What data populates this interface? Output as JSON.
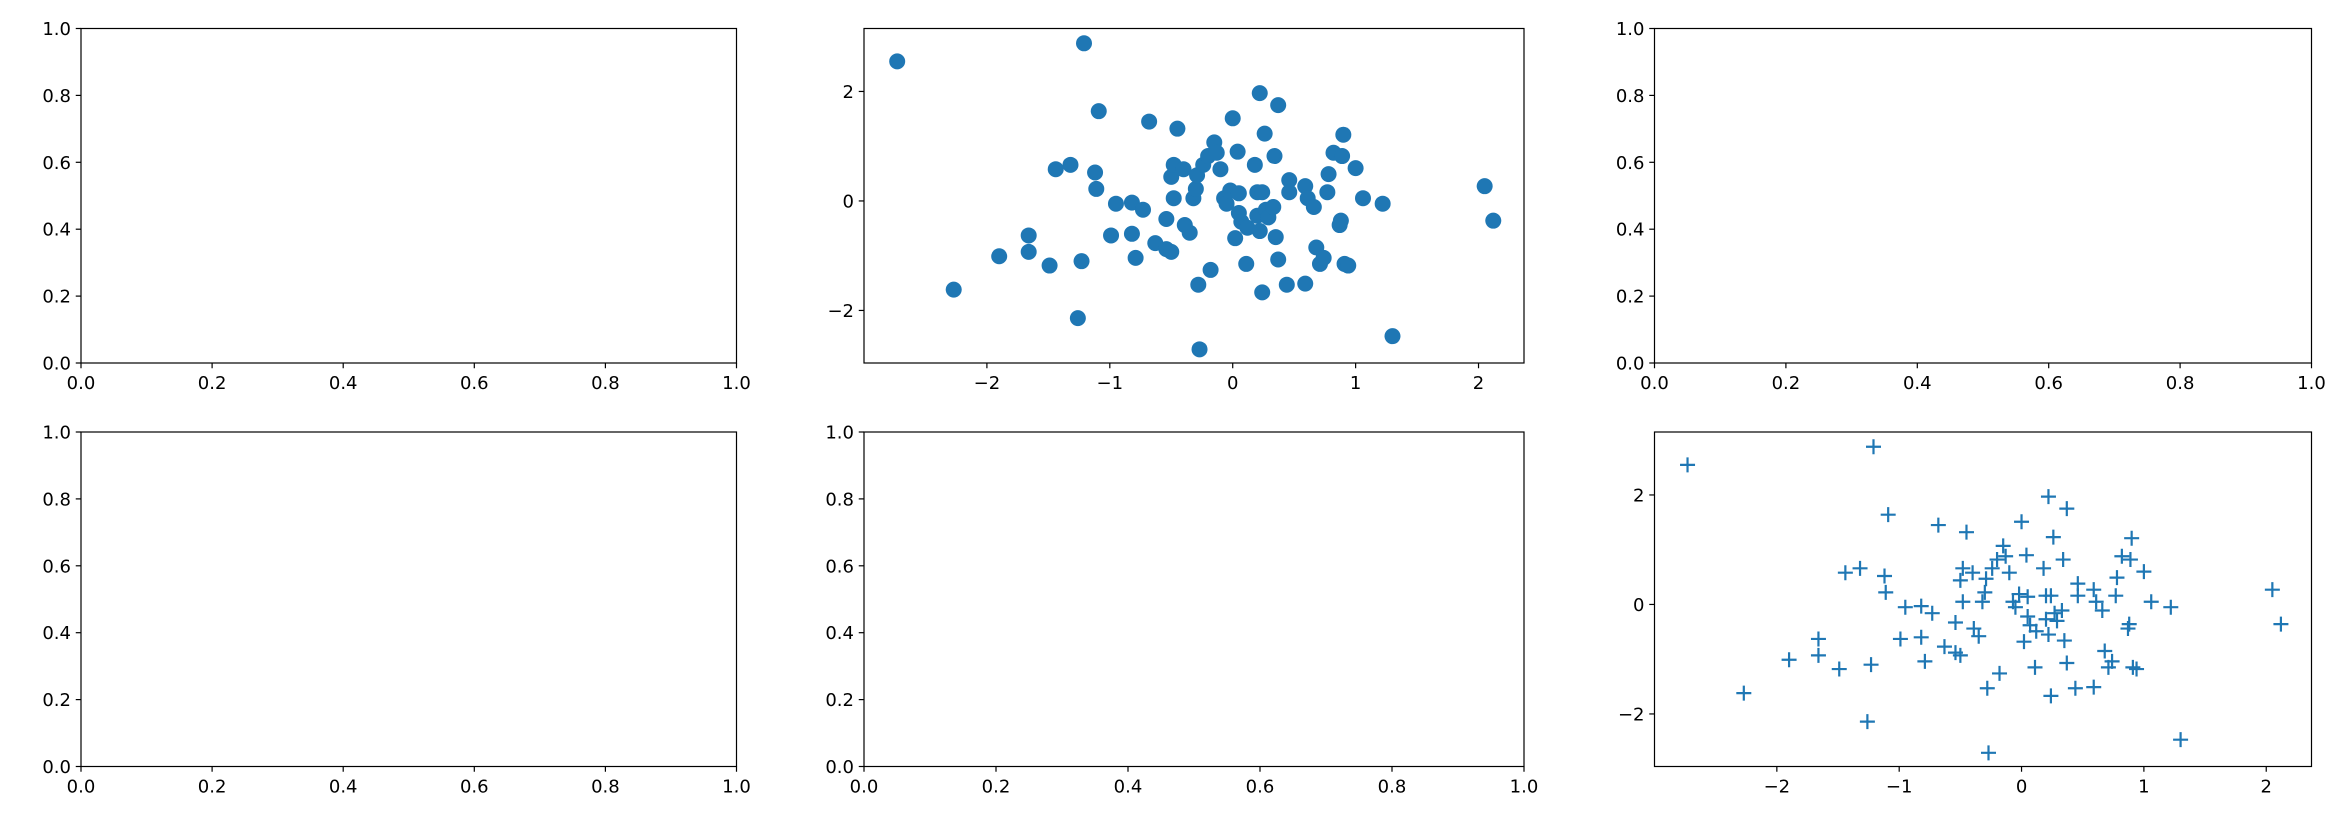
{
  "chart_data": [
    {
      "type": "axes",
      "xlim": [
        0,
        1
      ],
      "ylim": [
        0,
        1
      ],
      "xticks": [
        {
          "value": 0,
          "label": "0.0"
        },
        {
          "value": 0.2,
          "label": "0.2"
        },
        {
          "value": 0.4,
          "label": "0.4"
        },
        {
          "value": 0.6,
          "label": "0.6"
        },
        {
          "value": 0.8,
          "label": "0.8"
        },
        {
          "value": 1,
          "label": "1.0"
        }
      ],
      "yticks": [
        {
          "value": 0,
          "label": "0.0"
        },
        {
          "value": 0.2,
          "label": "0.2"
        },
        {
          "value": 0.4,
          "label": "0.4"
        },
        {
          "value": 0.6,
          "label": "0.6"
        },
        {
          "value": 0.8,
          "label": "0.8"
        },
        {
          "value": 1,
          "label": "1.0"
        }
      ]
    },
    {
      "type": "scatter",
      "marker": "o",
      "color": "#1f77b4",
      "xlim": [
        -3.0,
        2.37
      ],
      "ylim": [
        -2.96,
        3.15
      ],
      "xticks": [
        {
          "value": -2,
          "label": "−2"
        },
        {
          "value": -1,
          "label": "−1"
        },
        0,
        1,
        2
      ],
      "yticks": [
        {
          "value": -2,
          "label": "−2"
        },
        0,
        2
      ],
      "x": [
        -2.73,
        -1.21,
        -2.27,
        -1.9,
        -1.66,
        -1.66,
        -1.49,
        -1.44,
        -1.32,
        -1.23,
        -1.26,
        -1.12,
        -1.11,
        -1.09,
        -0.99,
        -0.95,
        -0.82,
        -0.82,
        -0.79,
        -0.73,
        -0.68,
        -0.63,
        -0.54,
        -0.54,
        -0.5,
        -0.5,
        -0.48,
        -0.48,
        -0.45,
        -0.4,
        -0.39,
        -0.35,
        -0.32,
        -0.3,
        -0.28,
        -0.27,
        -0.29,
        -0.24,
        -0.2,
        -0.18,
        -0.15,
        -0.13,
        -0.1,
        -0.07,
        -0.05,
        -0.02,
        0.0,
        0.02,
        0.04,
        0.05,
        0.05,
        0.07,
        0.11,
        0.12,
        0.18,
        0.2,
        0.2,
        0.22,
        0.22,
        0.24,
        0.24,
        0.26,
        0.27,
        0.29,
        0.33,
        0.34,
        0.35,
        0.37,
        0.37,
        0.44,
        0.46,
        0.46,
        0.59,
        0.59,
        0.61,
        0.66,
        0.68,
        0.71,
        0.74,
        0.77,
        0.78,
        0.82,
        0.87,
        0.88,
        0.89,
        0.9,
        0.91,
        0.94,
        1.0,
        1.06,
        1.22,
        1.3,
        2.05,
        2.12
      ],
      "values": [
        2.55,
        2.88,
        -1.62,
        -1.01,
        -0.63,
        -0.93,
        -1.18,
        0.58,
        0.66,
        -1.1,
        -2.14,
        0.52,
        0.22,
        1.64,
        -0.63,
        -0.05,
        -0.03,
        -0.6,
        -1.04,
        -0.16,
        1.45,
        -0.77,
        -0.33,
        -0.88,
        -0.93,
        0.44,
        0.66,
        0.05,
        1.32,
        0.58,
        -0.44,
        -0.58,
        0.05,
        0.22,
        -1.53,
        -2.71,
        0.47,
        0.66,
        0.82,
        -1.26,
        1.07,
        0.88,
        0.58,
        0.05,
        -0.05,
        0.19,
        1.51,
        -0.68,
        0.9,
        -0.22,
        0.14,
        -0.38,
        -1.15,
        -0.49,
        0.66,
        0.16,
        -0.27,
        -0.55,
        1.97,
        0.16,
        -1.67,
        1.23,
        -0.16,
        -0.3,
        -0.11,
        0.82,
        -0.66,
        1.75,
        -1.07,
        -1.53,
        0.38,
        0.16,
        0.27,
        -1.51,
        0.05,
        -0.11,
        -0.85,
        -1.15,
        -1.04,
        0.16,
        0.49,
        0.88,
        -0.44,
        -0.36,
        0.82,
        1.21,
        -1.15,
        -1.18,
        0.6,
        0.05,
        -0.05,
        -2.47,
        0.27,
        -0.36
      ]
    },
    {
      "type": "axes",
      "xlim": [
        0,
        1
      ],
      "ylim": [
        0,
        1
      ],
      "xticks": [
        {
          "value": 0,
          "label": "0.0"
        },
        {
          "value": 0.2,
          "label": "0.2"
        },
        {
          "value": 0.4,
          "label": "0.4"
        },
        {
          "value": 0.6,
          "label": "0.6"
        },
        {
          "value": 0.8,
          "label": "0.8"
        },
        {
          "value": 1,
          "label": "1.0"
        }
      ],
      "yticks": [
        {
          "value": 0,
          "label": "0.0"
        },
        {
          "value": 0.2,
          "label": "0.2"
        },
        {
          "value": 0.4,
          "label": "0.4"
        },
        {
          "value": 0.6,
          "label": "0.6"
        },
        {
          "value": 0.8,
          "label": "0.8"
        },
        {
          "value": 1,
          "label": "1.0"
        }
      ]
    },
    {
      "type": "axes",
      "xlim": [
        0,
        1
      ],
      "ylim": [
        0,
        1
      ],
      "xticks": [
        {
          "value": 0,
          "label": "0.0"
        },
        {
          "value": 0.2,
          "label": "0.2"
        },
        {
          "value": 0.4,
          "label": "0.4"
        },
        {
          "value": 0.6,
          "label": "0.6"
        },
        {
          "value": 0.8,
          "label": "0.8"
        },
        {
          "value": 1,
          "label": "1.0"
        }
      ],
      "yticks": [
        {
          "value": 0,
          "label": "0.0"
        },
        {
          "value": 0.2,
          "label": "0.2"
        },
        {
          "value": 0.4,
          "label": "0.4"
        },
        {
          "value": 0.6,
          "label": "0.6"
        },
        {
          "value": 0.8,
          "label": "0.8"
        },
        {
          "value": 1,
          "label": "1.0"
        }
      ]
    },
    {
      "type": "axes",
      "xlim": [
        0,
        1
      ],
      "ylim": [
        0,
        1
      ],
      "xticks": [
        {
          "value": 0,
          "label": "0.0"
        },
        {
          "value": 0.2,
          "label": "0.2"
        },
        {
          "value": 0.4,
          "label": "0.4"
        },
        {
          "value": 0.6,
          "label": "0.6"
        },
        {
          "value": 0.8,
          "label": "0.8"
        },
        {
          "value": 1,
          "label": "1.0"
        }
      ],
      "yticks": [
        {
          "value": 0,
          "label": "0.0"
        },
        {
          "value": 0.2,
          "label": "0.2"
        },
        {
          "value": 0.4,
          "label": "0.4"
        },
        {
          "value": 0.6,
          "label": "0.6"
        },
        {
          "value": 0.8,
          "label": "0.8"
        },
        {
          "value": 1,
          "label": "1.0"
        }
      ]
    },
    {
      "type": "scatter",
      "marker": "+",
      "color": "#1f77b4",
      "xlim": [
        -3.0,
        2.37
      ],
      "ylim": [
        -2.96,
        3.15
      ],
      "xticks": [
        {
          "value": -2,
          "label": "−2"
        },
        {
          "value": -1,
          "label": "−1"
        },
        0,
        1,
        2
      ],
      "yticks": [
        {
          "value": -2,
          "label": "−2"
        },
        0,
        2
      ],
      "x": [
        -2.73,
        -1.21,
        -2.27,
        -1.9,
        -1.66,
        -1.66,
        -1.49,
        -1.44,
        -1.32,
        -1.23,
        -1.26,
        -1.12,
        -1.11,
        -1.09,
        -0.99,
        -0.95,
        -0.82,
        -0.82,
        -0.79,
        -0.73,
        -0.68,
        -0.63,
        -0.54,
        -0.54,
        -0.5,
        -0.5,
        -0.48,
        -0.48,
        -0.45,
        -0.4,
        -0.39,
        -0.35,
        -0.32,
        -0.3,
        -0.28,
        -0.27,
        -0.29,
        -0.24,
        -0.2,
        -0.18,
        -0.15,
        -0.13,
        -0.1,
        -0.07,
        -0.05,
        -0.02,
        0.0,
        0.02,
        0.04,
        0.05,
        0.05,
        0.07,
        0.11,
        0.12,
        0.18,
        0.2,
        0.2,
        0.22,
        0.22,
        0.24,
        0.24,
        0.26,
        0.27,
        0.29,
        0.33,
        0.34,
        0.35,
        0.37,
        0.37,
        0.44,
        0.46,
        0.46,
        0.59,
        0.59,
        0.61,
        0.66,
        0.68,
        0.71,
        0.74,
        0.77,
        0.78,
        0.82,
        0.87,
        0.88,
        0.89,
        0.9,
        0.91,
        0.94,
        1.0,
        1.06,
        1.22,
        1.3,
        2.05,
        2.12
      ],
      "values": [
        2.55,
        2.88,
        -1.62,
        -1.01,
        -0.63,
        -0.93,
        -1.18,
        0.58,
        0.66,
        -1.1,
        -2.14,
        0.52,
        0.22,
        1.64,
        -0.63,
        -0.05,
        -0.03,
        -0.6,
        -1.04,
        -0.16,
        1.45,
        -0.77,
        -0.33,
        -0.88,
        -0.93,
        0.44,
        0.66,
        0.05,
        1.32,
        0.58,
        -0.44,
        -0.58,
        0.05,
        0.22,
        -1.53,
        -2.71,
        0.47,
        0.66,
        0.82,
        -1.26,
        1.07,
        0.88,
        0.58,
        0.05,
        -0.05,
        0.19,
        1.51,
        -0.68,
        0.9,
        -0.22,
        0.14,
        -0.38,
        -1.15,
        -0.49,
        0.66,
        0.16,
        -0.27,
        -0.55,
        1.97,
        0.16,
        -1.67,
        1.23,
        -0.16,
        -0.3,
        -0.11,
        0.82,
        -0.66,
        1.75,
        -1.07,
        -1.53,
        0.38,
        0.16,
        0.27,
        -1.51,
        0.05,
        -0.11,
        -0.85,
        -1.15,
        -1.04,
        0.16,
        0.49,
        0.88,
        -0.44,
        -0.36,
        0.82,
        1.21,
        -1.15,
        -1.18,
        0.6,
        0.05,
        -0.05,
        -2.47,
        0.27,
        -0.36
      ]
    }
  ]
}
